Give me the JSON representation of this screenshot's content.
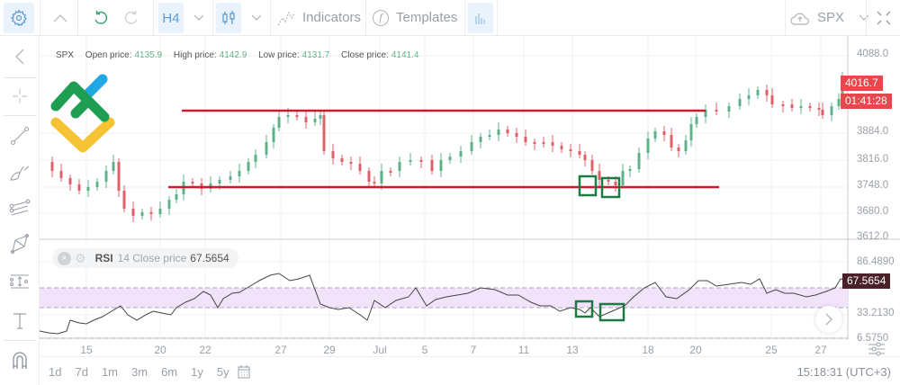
{
  "toolbar": {
    "timeframe": "H4",
    "indicators_label": "Indicators",
    "templates_label": "Templates",
    "symbol": "SPX"
  },
  "sidebar": {
    "items": [
      "collapse",
      "crosshair",
      "trend-line",
      "brush",
      "parallel-channel",
      "pattern",
      "measure",
      "text",
      "magnet"
    ]
  },
  "ohlc": {
    "symbol": "SPX",
    "open_label": "Open price:",
    "open": "4135.9",
    "high_label": "High price:",
    "high": "4142.9",
    "low_label": "Low price:",
    "low": "4131.7",
    "close_label": "Close price:",
    "close": "4141.4"
  },
  "price_axis": [
    "4088.0",
    "4016.7",
    "3884.0",
    "3816.0",
    "3748.0",
    "3680.0",
    "3612.0"
  ],
  "price_tag": "4016.7",
  "countdown_tag": "01:41:28",
  "rsi": {
    "name": "RSI",
    "params": "14 Close price",
    "value": "67.5654",
    "axis": [
      "86.4890",
      "33.2130",
      "6.5750"
    ],
    "tag": "67.5654"
  },
  "x_axis": [
    "15",
    "20",
    "22",
    "27",
    "29",
    "Jul",
    "5",
    "7",
    "11",
    "13",
    "18",
    "20",
    "25",
    "27"
  ],
  "ranges": [
    "1d",
    "7d",
    "1m",
    "3m",
    "6m",
    "1y",
    "5y"
  ],
  "clock": "15:18:31 (UTC+3)",
  "colors": {
    "up": "#5fb38a",
    "down": "#e0606a",
    "support_resistance": "#d0192c",
    "highlight_box": "#1e7a45",
    "rsi_band": "#f1e3fa",
    "price_tag": "#e5484d"
  }
}
